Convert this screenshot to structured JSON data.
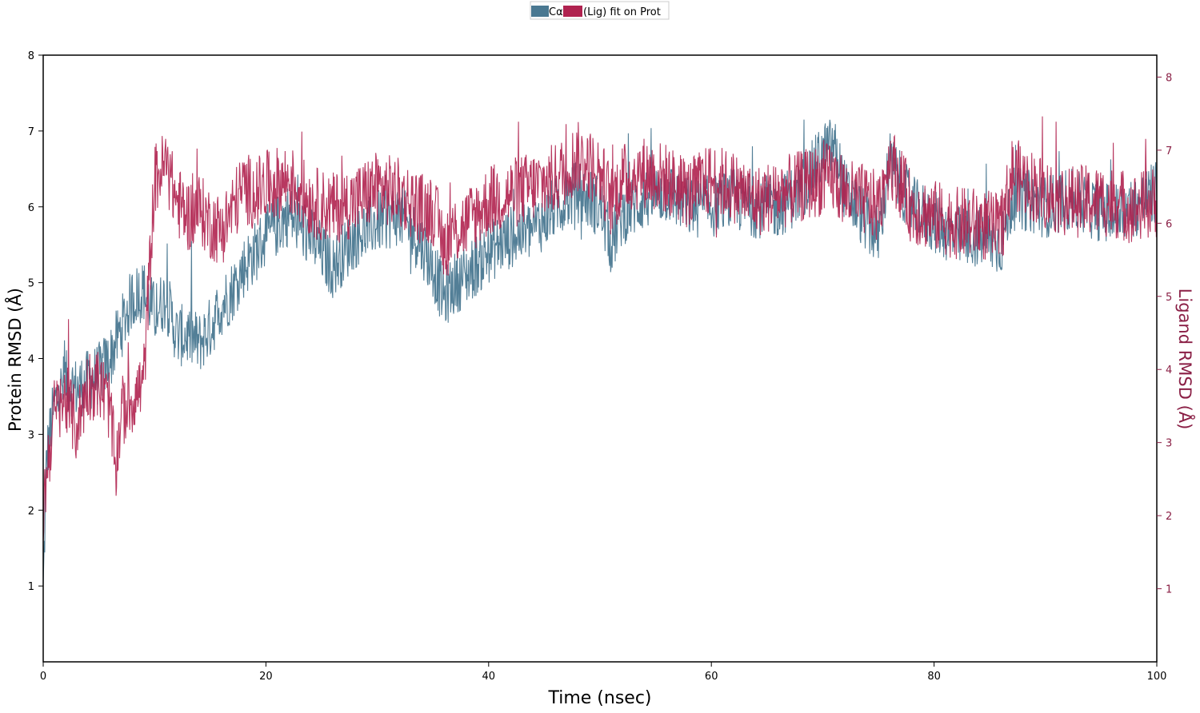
{
  "colors": {
    "protein": "#4a7891",
    "ligand": "#b0224f",
    "axis": "#000000",
    "ligand_axis": "#8a1f45"
  },
  "legend": {
    "protein_label": "Cα",
    "ligand_label": "(Lig) fit on Prot",
    "placement": "top-center"
  },
  "chart_data": {
    "type": "line",
    "title": "",
    "xlabel": "Time (nsec)",
    "ylabel": "Protein RMSD (Å)",
    "y2label": "Ligand RMSD (Å)",
    "xlim": [
      0,
      100
    ],
    "ylim": [
      0,
      8
    ],
    "y2lim": [
      0,
      8.3
    ],
    "xticks": [
      0,
      20,
      40,
      60,
      80,
      100
    ],
    "yticks": [
      1,
      2,
      3,
      4,
      5,
      6,
      7,
      8
    ],
    "y2ticks": [
      1,
      2,
      3,
      4,
      5,
      6,
      7,
      8
    ],
    "grid": false,
    "series": [
      {
        "name": "Cα",
        "axis": "left",
        "x": [
          0,
          0.3,
          1,
          2,
          3,
          4,
          5,
          6,
          7,
          8,
          9,
          10,
          11,
          12,
          13,
          14,
          15,
          16,
          17,
          18,
          19,
          20,
          22,
          24,
          26,
          28,
          30,
          32,
          34,
          35,
          36,
          37,
          38,
          40,
          42,
          44,
          46,
          48,
          50,
          51,
          52,
          54,
          56,
          58,
          60,
          62,
          64,
          66,
          68,
          70,
          71,
          72,
          74,
          75,
          76,
          78,
          80,
          82,
          84,
          86,
          87,
          88,
          90,
          92,
          94,
          96,
          98,
          100
        ],
        "y": [
          0.9,
          2.7,
          3.4,
          3.7,
          3.6,
          3.7,
          3.8,
          4.0,
          4.4,
          4.8,
          4.9,
          4.6,
          4.8,
          4.3,
          4.3,
          4.2,
          4.4,
          4.7,
          4.9,
          5.2,
          5.4,
          5.6,
          5.9,
          5.6,
          5.2,
          5.6,
          5.8,
          5.9,
          5.5,
          5.2,
          4.8,
          5.0,
          5.1,
          5.4,
          5.6,
          5.7,
          6.0,
          6.2,
          6.0,
          5.5,
          5.9,
          6.1,
          6.2,
          6.0,
          6.0,
          6.1,
          6.0,
          6.0,
          6.2,
          6.7,
          6.8,
          6.2,
          5.8,
          5.6,
          6.6,
          6.0,
          5.8,
          5.6,
          5.6,
          5.5,
          6.1,
          6.1,
          6.0,
          6.1,
          6.0,
          5.9,
          6.0,
          6.2
        ]
      },
      {
        "name": "(Lig) fit on Prot",
        "axis": "right",
        "x": [
          0,
          0.3,
          1,
          2,
          3,
          4,
          5,
          6,
          6.5,
          7,
          8,
          9,
          10,
          11,
          12,
          13,
          14,
          15,
          16,
          17,
          18,
          19,
          20,
          22,
          24,
          26,
          28,
          30,
          32,
          34,
          35,
          36,
          37,
          38,
          40,
          42,
          44,
          46,
          48,
          50,
          51,
          52,
          54,
          56,
          58,
          60,
          62,
          64,
          66,
          68,
          70,
          71,
          72,
          74,
          75,
          76,
          78,
          80,
          82,
          84,
          86,
          87,
          88,
          90,
          92,
          94,
          96,
          98,
          100
        ],
        "y": [
          2.0,
          2.6,
          3.4,
          3.6,
          3.2,
          3.8,
          3.8,
          3.5,
          2.6,
          3.4,
          3.6,
          3.8,
          6.6,
          6.8,
          6.3,
          6.1,
          6.2,
          6.0,
          5.9,
          6.2,
          6.5,
          6.4,
          6.5,
          6.6,
          6.3,
          6.2,
          6.3,
          6.5,
          6.4,
          6.2,
          6.2,
          5.7,
          5.9,
          6.0,
          6.3,
          6.4,
          6.5,
          6.6,
          6.9,
          6.7,
          6.3,
          6.6,
          6.7,
          6.6,
          6.4,
          6.6,
          6.5,
          6.3,
          6.4,
          6.5,
          6.6,
          6.6,
          6.4,
          6.3,
          6.2,
          6.9,
          6.2,
          6.1,
          6.0,
          6.0,
          5.9,
          6.7,
          6.6,
          6.4,
          6.3,
          6.3,
          6.3,
          6.2,
          6.3
        ]
      }
    ]
  }
}
